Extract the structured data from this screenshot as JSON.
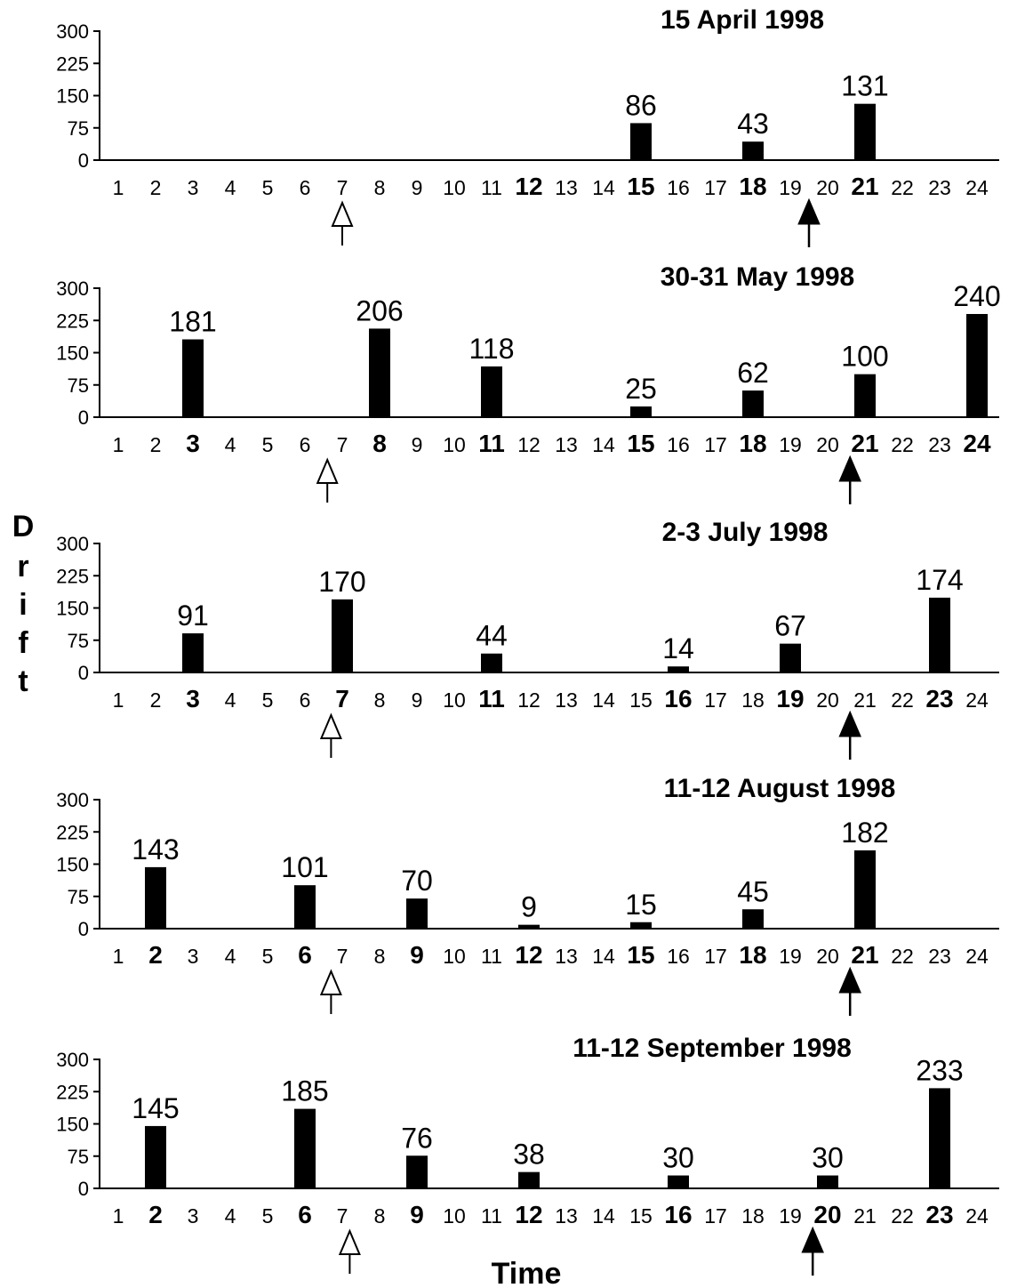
{
  "chart_data": [
    {
      "type": "bar",
      "title": "15 April 1998",
      "yticks": [
        "0",
        "75",
        "150",
        "225",
        "300"
      ],
      "ylim": [
        0,
        300
      ],
      "x": [
        1,
        2,
        3,
        4,
        5,
        6,
        7,
        8,
        9,
        10,
        11,
        12,
        13,
        14,
        15,
        16,
        17,
        18,
        19,
        20,
        21,
        22,
        23,
        24
      ],
      "bold_x": [
        12,
        15,
        18,
        21
      ],
      "bars": [
        {
          "x": 15,
          "value": 86
        },
        {
          "x": 18,
          "value": 43
        },
        {
          "x": 21,
          "value": 131
        }
      ],
      "open_arrow_x": 7,
      "filled_arrow_x": 19.5
    },
    {
      "type": "bar",
      "title": "30-31 May 1998",
      "yticks": [
        "0",
        "75",
        "150",
        "225",
        "300"
      ],
      "ylim": [
        0,
        300
      ],
      "x": [
        1,
        2,
        3,
        4,
        5,
        6,
        7,
        8,
        9,
        10,
        11,
        12,
        13,
        14,
        15,
        16,
        17,
        18,
        19,
        20,
        21,
        22,
        23,
        24
      ],
      "bold_x": [
        3,
        8,
        11,
        15,
        18,
        21,
        24
      ],
      "bars": [
        {
          "x": 3,
          "value": 181
        },
        {
          "x": 8,
          "value": 206
        },
        {
          "x": 11,
          "value": 118
        },
        {
          "x": 15,
          "value": 25
        },
        {
          "x": 18,
          "value": 62
        },
        {
          "x": 21,
          "value": 100
        },
        {
          "x": 24,
          "value": 240
        }
      ],
      "open_arrow_x": 6.6,
      "filled_arrow_x": 20.6
    },
    {
      "type": "bar",
      "title": "2-3 July 1998",
      "yticks": [
        "0",
        "75",
        "150",
        "225",
        "300"
      ],
      "ylim": [
        0,
        300
      ],
      "x": [
        1,
        2,
        3,
        4,
        5,
        6,
        7,
        8,
        9,
        10,
        11,
        12,
        13,
        14,
        15,
        16,
        17,
        18,
        19,
        20,
        21,
        22,
        23,
        24
      ],
      "bold_x": [
        3,
        7,
        11,
        16,
        19,
        23
      ],
      "bars": [
        {
          "x": 3,
          "value": 91
        },
        {
          "x": 7,
          "value": 170
        },
        {
          "x": 11,
          "value": 44
        },
        {
          "x": 16,
          "value": 14
        },
        {
          "x": 19,
          "value": 67
        },
        {
          "x": 23,
          "value": 174
        }
      ],
      "open_arrow_x": 6.7,
      "filled_arrow_x": 20.6
    },
    {
      "type": "bar",
      "title": "11-12 August 1998",
      "yticks": [
        "0",
        "75",
        "150",
        "225",
        "300"
      ],
      "ylim": [
        0,
        300
      ],
      "x": [
        1,
        2,
        3,
        4,
        5,
        6,
        7,
        8,
        9,
        10,
        11,
        12,
        13,
        14,
        15,
        16,
        17,
        18,
        19,
        20,
        21,
        22,
        23,
        24
      ],
      "bold_x": [
        2,
        6,
        9,
        12,
        15,
        18,
        21
      ],
      "bars": [
        {
          "x": 2,
          "value": 143
        },
        {
          "x": 6,
          "value": 101
        },
        {
          "x": 9,
          "value": 70
        },
        {
          "x": 12,
          "value": 9
        },
        {
          "x": 15,
          "value": 15
        },
        {
          "x": 18,
          "value": 45
        },
        {
          "x": 21,
          "value": 182
        }
      ],
      "open_arrow_x": 6.7,
      "filled_arrow_x": 20.6
    },
    {
      "type": "bar",
      "title": "11-12 September 1998",
      "yticks": [
        "0",
        "75",
        "150",
        "225",
        "300"
      ],
      "ylim": [
        0,
        300
      ],
      "x": [
        1,
        2,
        3,
        4,
        5,
        6,
        7,
        8,
        9,
        10,
        11,
        12,
        13,
        14,
        15,
        16,
        17,
        18,
        19,
        20,
        21,
        22,
        23,
        24
      ],
      "bold_x": [
        2,
        6,
        9,
        12,
        16,
        20,
        23
      ],
      "bars": [
        {
          "x": 2,
          "value": 145
        },
        {
          "x": 6,
          "value": 185
        },
        {
          "x": 9,
          "value": 76
        },
        {
          "x": 12,
          "value": 38
        },
        {
          "x": 16,
          "value": 30
        },
        {
          "x": 20,
          "value": 30
        },
        {
          "x": 23,
          "value": 233
        }
      ],
      "open_arrow_x": 7.2,
      "filled_arrow_x": 19.6
    }
  ],
  "ylabel": "Drift",
  "ylabel_letters": [
    "D",
    "r",
    "i",
    "f",
    "t"
  ],
  "xlabel": "Time"
}
